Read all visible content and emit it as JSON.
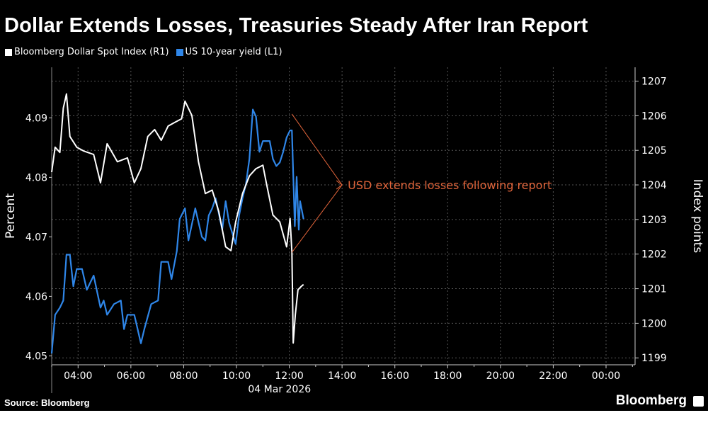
{
  "title": "Dollar Extends Losses, Treasuries Steady After Iran Report",
  "source": "Source: Bloomberg",
  "brand": "Bloomberg",
  "colors": {
    "background": "#000000",
    "dollar": "#ffffff",
    "yield": "#2f86e8",
    "annotation": "#e0643a",
    "grid": "#555555"
  },
  "chart_data": {
    "type": "line",
    "title": "Dollar Extends Losses, Treasuries Steady After Iran Report",
    "legend": [
      {
        "name": "Bloomberg Dollar Spot Index (R1)",
        "color": "#ffffff"
      },
      {
        "name": "US 10-year yield (L1)",
        "color": "#2f86e8"
      }
    ],
    "legend_placement": "top-left",
    "xlabel": "04 Mar 2026",
    "ylabel_left": "Percent",
    "ylabel_right": "Index points",
    "x_unit": "hours since 00:00 on 04 Mar 2026",
    "xlim": [
      3,
      25.1
    ],
    "ylim_left": [
      4.0485,
      4.0985
    ],
    "ylim_right": [
      1198.8,
      1207.4
    ],
    "x_ticks": [
      {
        "x": 4,
        "label": "04:00"
      },
      {
        "x": 6,
        "label": "06:00"
      },
      {
        "x": 8,
        "label": "08:00"
      },
      {
        "x": 10,
        "label": "10:00"
      },
      {
        "x": 12,
        "label": "12:00"
      },
      {
        "x": 14,
        "label": "14:00"
      },
      {
        "x": 16,
        "label": "16:00"
      },
      {
        "x": 18,
        "label": "18:00"
      },
      {
        "x": 20,
        "label": "20:00"
      },
      {
        "x": 22,
        "label": "22:00"
      },
      {
        "x": 24,
        "label": "00:00"
      }
    ],
    "y_ticks_left": [
      {
        "v": 4.05,
        "label": "4.05"
      },
      {
        "v": 4.06,
        "label": "4.06"
      },
      {
        "v": 4.07,
        "label": "4.07"
      },
      {
        "v": 4.08,
        "label": "4.08"
      },
      {
        "v": 4.09,
        "label": "4.09"
      }
    ],
    "y_ticks_right": [
      {
        "v": 1199,
        "label": "1199"
      },
      {
        "v": 1200,
        "label": "1200"
      },
      {
        "v": 1201,
        "label": "1201"
      },
      {
        "v": 1202,
        "label": "1202"
      },
      {
        "v": 1203,
        "label": "1203"
      },
      {
        "v": 1204,
        "label": "1204"
      },
      {
        "v": 1205,
        "label": "1205"
      },
      {
        "v": 1206,
        "label": "1206"
      },
      {
        "v": 1207,
        "label": "1207"
      }
    ],
    "grid": true,
    "series": [
      {
        "name": "Bloomberg Dollar Spot Index (R1)",
        "axis": "right",
        "points": [
          [
            3.0,
            1204.37
          ],
          [
            3.13,
            1205.09
          ],
          [
            3.31,
            1204.94
          ],
          [
            3.44,
            1206.22
          ],
          [
            3.56,
            1206.63
          ],
          [
            3.69,
            1205.4
          ],
          [
            3.95,
            1205.09
          ],
          [
            4.21,
            1204.98
          ],
          [
            4.59,
            1204.88
          ],
          [
            4.85,
            1204.06
          ],
          [
            5.1,
            1205.19
          ],
          [
            5.49,
            1204.67
          ],
          [
            5.87,
            1204.78
          ],
          [
            6.13,
            1204.06
          ],
          [
            6.38,
            1204.47
          ],
          [
            6.64,
            1205.4
          ],
          [
            6.9,
            1205.6
          ],
          [
            7.15,
            1205.29
          ],
          [
            7.41,
            1205.7
          ],
          [
            7.67,
            1205.81
          ],
          [
            7.92,
            1205.91
          ],
          [
            8.05,
            1206.42
          ],
          [
            8.31,
            1206.01
          ],
          [
            8.56,
            1204.67
          ],
          [
            8.82,
            1203.75
          ],
          [
            9.08,
            1203.85
          ],
          [
            9.33,
            1203.23
          ],
          [
            9.59,
            1202.21
          ],
          [
            9.79,
            1202.1
          ],
          [
            9.97,
            1202.93
          ],
          [
            10.23,
            1203.75
          ],
          [
            10.49,
            1204.26
          ],
          [
            10.74,
            1204.47
          ],
          [
            11.0,
            1204.57
          ],
          [
            11.13,
            1204.06
          ],
          [
            11.38,
            1203.13
          ],
          [
            11.64,
            1202.93
          ],
          [
            11.9,
            1202.21
          ],
          [
            12.03,
            1203.03
          ],
          [
            12.1,
            1202.06
          ],
          [
            12.15,
            1199.43
          ],
          [
            12.23,
            1200.25
          ],
          [
            12.33,
            1200.97
          ],
          [
            12.46,
            1201.07
          ],
          [
            12.54,
            1201.12
          ]
        ]
      },
      {
        "name": "US 10-year yield (L1)",
        "axis": "left",
        "points": [
          [
            3.0,
            4.0504
          ],
          [
            3.13,
            4.0569
          ],
          [
            3.31,
            4.0581
          ],
          [
            3.44,
            4.0593
          ],
          [
            3.56,
            4.067
          ],
          [
            3.69,
            4.067
          ],
          [
            3.82,
            4.0617
          ],
          [
            3.95,
            4.0646
          ],
          [
            4.15,
            4.0646
          ],
          [
            4.33,
            4.0611
          ],
          [
            4.59,
            4.0635
          ],
          [
            4.85,
            4.0581
          ],
          [
            4.97,
            4.0593
          ],
          [
            5.1,
            4.0569
          ],
          [
            5.36,
            4.0587
          ],
          [
            5.62,
            4.0593
          ],
          [
            5.74,
            4.0545
          ],
          [
            5.87,
            4.0569
          ],
          [
            6.13,
            4.0569
          ],
          [
            6.38,
            4.0521
          ],
          [
            6.51,
            4.0545
          ],
          [
            6.77,
            4.0587
          ],
          [
            7.03,
            4.0593
          ],
          [
            7.15,
            4.0658
          ],
          [
            7.41,
            4.0658
          ],
          [
            7.54,
            4.0629
          ],
          [
            7.74,
            4.0676
          ],
          [
            7.85,
            4.073
          ],
          [
            8.05,
            4.0748
          ],
          [
            8.18,
            4.0694
          ],
          [
            8.44,
            4.0748
          ],
          [
            8.69,
            4.07
          ],
          [
            8.82,
            4.0694
          ],
          [
            8.95,
            4.0736
          ],
          [
            9.08,
            4.0748
          ],
          [
            9.21,
            4.0765
          ],
          [
            9.46,
            4.0712
          ],
          [
            9.59,
            4.076
          ],
          [
            9.72,
            4.0724
          ],
          [
            9.97,
            4.0688
          ],
          [
            10.1,
            4.0736
          ],
          [
            10.23,
            4.0765
          ],
          [
            10.36,
            4.0789
          ],
          [
            10.49,
            4.0831
          ],
          [
            10.62,
            4.0914
          ],
          [
            10.74,
            4.0902
          ],
          [
            10.87,
            4.0843
          ],
          [
            11.0,
            4.0861
          ],
          [
            11.26,
            4.0861
          ],
          [
            11.38,
            4.0831
          ],
          [
            11.51,
            4.0819
          ],
          [
            11.64,
            4.0825
          ],
          [
            11.77,
            4.0843
          ],
          [
            11.9,
            4.0867
          ],
          [
            12.03,
            4.0879
          ],
          [
            12.1,
            4.0879
          ],
          [
            12.21,
            4.0718
          ],
          [
            12.28,
            4.0801
          ],
          [
            12.36,
            4.0712
          ],
          [
            12.41,
            4.076
          ],
          [
            12.54,
            4.073
          ]
        ]
      }
    ],
    "annotation": {
      "text": "USD extends losses following report",
      "target_x": 14.0,
      "target_right_value": 1204.0,
      "arrows_from": [
        {
          "x": 12.1,
          "right_value": 1206.05
        },
        {
          "x": 12.1,
          "right_value": 1202.05
        }
      ]
    }
  }
}
